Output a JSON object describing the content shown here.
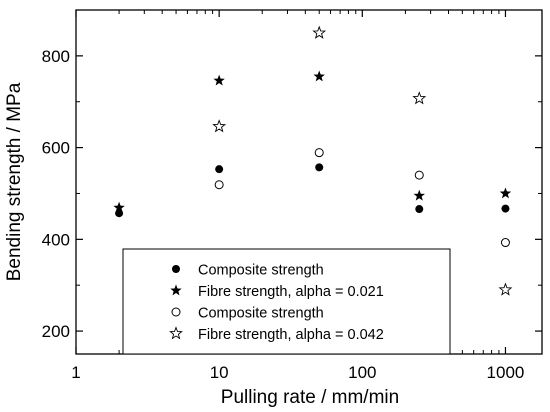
{
  "chart_data": {
    "type": "scatter",
    "title": "",
    "xlabel": "Pulling rate / mm/min",
    "ylabel": "Bending strength / MPa",
    "xscale": "log",
    "xlim": [
      1,
      1800
    ],
    "ylim": [
      150,
      900
    ],
    "xticks": [
      1,
      10,
      100,
      1000
    ],
    "xtick_labels": [
      "1",
      "10",
      "100",
      "1000"
    ],
    "yticks": [
      200,
      400,
      600,
      800
    ],
    "ytick_labels": [
      "200",
      "400",
      "600",
      "800"
    ],
    "grid": false,
    "legend_position": "bottom-center",
    "series": [
      {
        "name": "Composite strength",
        "marker": "filled-circle",
        "color": "#000000",
        "x": [
          2,
          10,
          50,
          250,
          1000
        ],
        "y": [
          457,
          553,
          557,
          466,
          467
        ]
      },
      {
        "name": "Fibre strength, alpha = 0.021",
        "marker": "filled-star",
        "color": "#000000",
        "x": [
          2,
          10,
          50,
          250,
          1000
        ],
        "y": [
          469,
          746,
          755,
          495,
          500
        ]
      },
      {
        "name": "Composite strength",
        "marker": "open-circle",
        "color": "#000000",
        "x": [
          10,
          50,
          250,
          1000
        ],
        "y": [
          519,
          589,
          540,
          393
        ]
      },
      {
        "name": "Fibre strength, alpha = 0.042",
        "marker": "open-star",
        "color": "#000000",
        "x": [
          10,
          50,
          250,
          1000
        ],
        "y": [
          646,
          850,
          707,
          290
        ]
      }
    ]
  }
}
